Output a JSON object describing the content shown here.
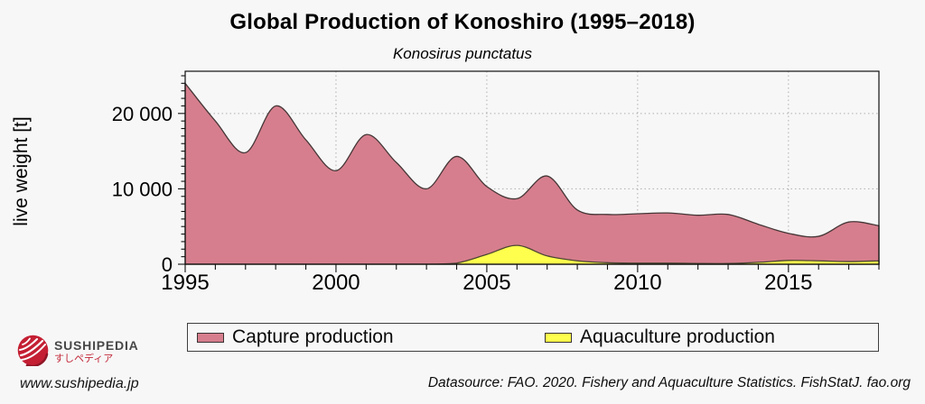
{
  "header": {
    "title": "Global Production of Konoshiro (1995–2018)",
    "subtitle": "Konosirus punctatus"
  },
  "chart_data": {
    "type": "area",
    "x": [
      1995,
      1996,
      1997,
      1998,
      1999,
      2000,
      2001,
      2002,
      2003,
      2004,
      2005,
      2006,
      2007,
      2008,
      2009,
      2010,
      2011,
      2012,
      2013,
      2014,
      2015,
      2016,
      2017,
      2018
    ],
    "series": [
      {
        "name": "Capture production",
        "fill": "#d67e8d",
        "stroke": "#453637",
        "values": [
          24000,
          19000,
          14800,
          21000,
          16500,
          12400,
          17200,
          13500,
          10000,
          14300,
          10300,
          8700,
          11700,
          7200,
          6600,
          6700,
          6800,
          6500,
          6600,
          5300,
          4100,
          3700,
          5600,
          5100
        ]
      },
      {
        "name": "Aquaculture production",
        "fill": "#ffff4d",
        "stroke": "#4c4632",
        "values": [
          0,
          0,
          0,
          0,
          0,
          0,
          0,
          0,
          0,
          150,
          1300,
          2500,
          1100,
          450,
          200,
          150,
          150,
          100,
          100,
          250,
          500,
          450,
          350,
          450
        ]
      }
    ],
    "ylabel": "live weight [t]",
    "xlabel": "",
    "xlim": [
      1995,
      2018
    ],
    "ylim": [
      0,
      25600
    ],
    "xticks": {
      "values": [
        1995,
        2000,
        2005,
        2010,
        2015
      ],
      "labels": [
        "1995",
        "2000",
        "2005",
        "2010",
        "2015"
      ]
    },
    "yticks": {
      "values": [
        0,
        10000,
        20000
      ],
      "labels": [
        "0",
        "10 000",
        "20 000"
      ]
    },
    "minor_x_step": 1,
    "minor_y_step": 1000,
    "grid": "dotted",
    "grid_color": "#b0b0b0",
    "legend_position": "bottom"
  },
  "legend": {
    "items": [
      {
        "label": "Capture production",
        "color": "#d67e8d"
      },
      {
        "label": "Aquaculture production",
        "color": "#ffff4d"
      }
    ]
  },
  "footer": {
    "brand": "SUSHIPEDIA",
    "brand_jp": "すしペディア",
    "website": "www.sushipedia.jp",
    "datasource": "Datasource: FAO. 2020. Fishery and Aquaculture Statistics. FishStatJ. fao.org",
    "logo_color": "#c41f33"
  }
}
